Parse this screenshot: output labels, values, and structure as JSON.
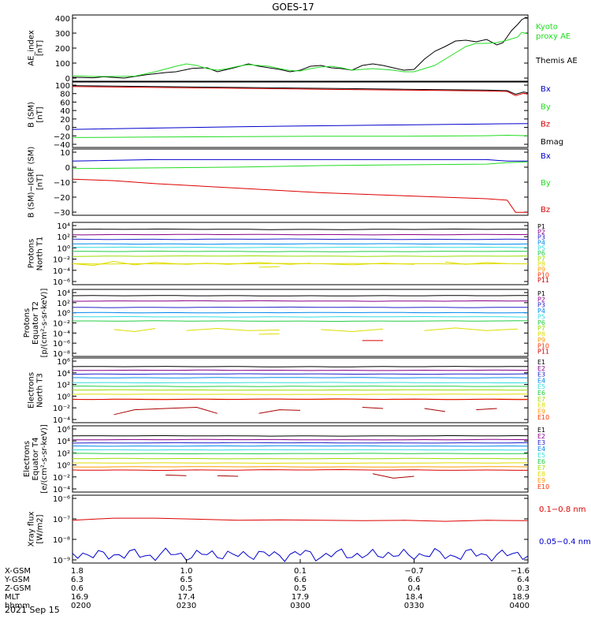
{
  "title": "GOES-17",
  "date": "2021 Sep 15",
  "colors": {
    "black": "#000000",
    "red": "#dd0000",
    "green": "#22dd22",
    "blue": "#0000cc",
    "P1": "#000000",
    "P2": "#880088",
    "P3": "#2222cc",
    "P4": "#0088ee",
    "P5": "#33dddd",
    "P6": "#22cc44",
    "P7": "#99dd00",
    "P8": "#dddd00",
    "P9": "#ff9900",
    "P10": "#ff3300",
    "P11": "#cc0000"
  },
  "panels": [
    {
      "id": "ae",
      "ylabel": [
        "AE_index",
        "[nT]"
      ],
      "ytick_labels": [
        "400",
        "300",
        "200",
        "100",
        "0"
      ],
      "ylim": [
        0,
        420
      ],
      "legend": [
        {
          "text": "Kyoto",
          "color": "#22dd22"
        },
        {
          "text": "proxy AE",
          "color": "#22dd22"
        },
        {
          "text": "Themis AE",
          "color": "#000000"
        }
      ]
    },
    {
      "id": "bsm",
      "ylabel": [
        "B (SM)",
        "[nT]"
      ],
      "ytick_labels": [
        "100",
        "80",
        "60",
        "40",
        "20",
        "0",
        "−20",
        "−40"
      ],
      "ylim": [
        -45,
        100
      ],
      "legend": [
        {
          "text": "Bx",
          "color": "#0000cc"
        },
        {
          "text": "By",
          "color": "#22dd22"
        },
        {
          "text": "Bz",
          "color": "#dd0000"
        },
        {
          "text": "Bmag",
          "color": "#000000"
        }
      ]
    },
    {
      "id": "bigrf",
      "ylabel": [
        "B (SM)−IGRF (SM)",
        "[nT]"
      ],
      "ytick_labels": [
        "10",
        "0",
        "−10",
        "−20",
        "−30"
      ],
      "ylim": [
        -32,
        12
      ],
      "legend": [
        {
          "text": "Bx",
          "color": "#0000cc"
        },
        {
          "text": "By",
          "color": "#22dd22"
        },
        {
          "text": "Bz",
          "color": "#dd0000"
        }
      ]
    },
    {
      "id": "pn",
      "ylabel": [
        "Protons",
        "North T1"
      ],
      "ytick_labels": [
        "10⁴",
        "10²",
        "10⁰",
        "10⁻²",
        "10⁻⁴",
        "10⁻⁶"
      ],
      "ylim": [
        -6.5,
        4.2
      ],
      "legend": [
        "P1",
        "P2",
        "P3",
        "P4",
        "P5",
        "P6",
        "P7",
        "P8",
        "P9",
        "P10",
        "P11"
      ]
    },
    {
      "id": "pe",
      "ylabel": [
        "Protons",
        "Equator T2",
        "[p/(cm²-s-sr-keV)]"
      ],
      "ytick_labels": [
        "10⁴",
        "10²",
        "10⁰",
        "10⁻²",
        "10⁻⁴",
        "10⁻⁶",
        "10⁻⁸"
      ],
      "ylim": [
        -8.5,
        4.2
      ],
      "legend": [
        "P1",
        "P2",
        "P3",
        "P4",
        "P5",
        "P6",
        "P7",
        "P8",
        "P9",
        "P10",
        "P11"
      ]
    },
    {
      "id": "en",
      "ylabel": [
        "Electrons",
        "North T3"
      ],
      "ytick_labels": [
        "10⁶",
        "10⁴",
        "10²",
        "10⁰",
        "10⁻²",
        "10⁻⁴"
      ],
      "ylim": [
        -4.3,
        6.2
      ],
      "legend": [
        "E1",
        "E2",
        "E3",
        "E4",
        "E5",
        "E6",
        "E7",
        "E8",
        "E9",
        "E10"
      ]
    },
    {
      "id": "ee",
      "ylabel": [
        "Electrons",
        "Equator T4",
        "[e/(cm²-s-sr-keV)]"
      ],
      "ytick_labels": [
        "10⁶",
        "10⁴",
        "10²",
        "10⁰",
        "10⁻²",
        "10⁻⁴"
      ],
      "ylim": [
        -4.3,
        6.2
      ],
      "legend": [
        "E1",
        "E2",
        "E3",
        "E4",
        "E5",
        "E6",
        "E7",
        "E8",
        "E9",
        "E10"
      ]
    },
    {
      "id": "xray",
      "ylabel": [
        "Xray flux",
        "[W/m2]"
      ],
      "ytick_labels": [
        "10⁻⁶",
        "10⁻⁷",
        "10⁻⁸",
        "10⁻⁹"
      ],
      "ylim": [
        -9.15,
        -5.9
      ],
      "legend": [
        {
          "text": "0.1−0.8 nm",
          "color": "#dd0000"
        },
        {
          "text": "0.05−0.4 nm",
          "color": "#0000cc"
        }
      ]
    }
  ],
  "x_axis": {
    "rows": [
      {
        "label": "X-GSM",
        "values": [
          "1.8",
          "1.0",
          "0.1",
          "−0.7",
          "−1.6"
        ]
      },
      {
        "label": "Y-GSM",
        "values": [
          "6.3",
          "6.5",
          "6.6",
          "6.6",
          "6.4"
        ]
      },
      {
        "label": "Z-GSM",
        "values": [
          "0.6",
          "0.5",
          "0.5",
          "0.4",
          "0.3"
        ]
      },
      {
        "label": "MLT",
        "values": [
          "16.9",
          "17.4",
          "17.9",
          "18.4",
          "18.9"
        ]
      },
      {
        "label": "hhmm",
        "values": [
          "0200",
          "0230",
          "0300",
          "0330",
          "0400"
        ]
      }
    ]
  },
  "chart_data": {
    "type": "line",
    "x_range": [
      "02:00",
      "04:00"
    ],
    "ae": {
      "themis": [
        [
          0,
          25
        ],
        [
          10,
          22
        ],
        [
          15,
          28
        ],
        [
          25,
          20
        ],
        [
          35,
          40
        ],
        [
          45,
          55
        ],
        [
          50,
          60
        ],
        [
          58,
          82
        ],
        [
          65,
          85
        ],
        [
          70,
          60
        ],
        [
          78,
          85
        ],
        [
          85,
          110
        ],
        [
          90,
          95
        ],
        [
          95,
          85
        ],
        [
          100,
          75
        ],
        [
          105,
          60
        ],
        [
          110,
          70
        ],
        [
          115,
          95
        ],
        [
          120,
          100
        ],
        [
          125,
          85
        ],
        [
          130,
          80
        ],
        [
          135,
          70
        ],
        [
          140,
          100
        ],
        [
          145,
          110
        ],
        [
          150,
          100
        ],
        [
          155,
          85
        ],
        [
          160,
          70
        ],
        [
          165,
          75
        ],
        [
          170,
          140
        ],
        [
          175,
          190
        ],
        [
          180,
          220
        ],
        [
          185,
          255
        ],
        [
          190,
          260
        ],
        [
          195,
          250
        ],
        [
          200,
          265
        ],
        [
          205,
          230
        ],
        [
          208,
          245
        ],
        [
          212,
          320
        ],
        [
          215,
          360
        ],
        [
          217,
          390
        ],
        [
          219,
          405
        ],
        [
          220,
          400
        ]
      ],
      "kyoto": [
        [
          0,
          35
        ],
        [
          10,
          30
        ],
        [
          20,
          30
        ],
        [
          30,
          32
        ],
        [
          40,
          60
        ],
        [
          50,
          95
        ],
        [
          55,
          110
        ],
        [
          60,
          100
        ],
        [
          65,
          80
        ],
        [
          70,
          70
        ],
        [
          75,
          80
        ],
        [
          80,
          95
        ],
        [
          85,
          105
        ],
        [
          90,
          100
        ],
        [
          95,
          95
        ],
        [
          100,
          80
        ],
        [
          105,
          68
        ],
        [
          110,
          65
        ],
        [
          115,
          80
        ],
        [
          120,
          90
        ],
        [
          125,
          95
        ],
        [
          130,
          85
        ],
        [
          135,
          70
        ],
        [
          140,
          75
        ],
        [
          145,
          80
        ],
        [
          150,
          75
        ],
        [
          155,
          70
        ],
        [
          160,
          60
        ],
        [
          165,
          60
        ],
        [
          170,
          80
        ],
        [
          175,
          100
        ],
        [
          180,
          140
        ],
        [
          185,
          180
        ],
        [
          190,
          220
        ],
        [
          195,
          240
        ],
        [
          200,
          240
        ],
        [
          205,
          245
        ],
        [
          210,
          260
        ],
        [
          215,
          280
        ],
        [
          217,
          310
        ],
        [
          220,
          300
        ]
      ]
    },
    "bsm": {
      "bmag": [
        [
          0,
          92
        ],
        [
          40,
          90
        ],
        [
          80,
          88
        ],
        [
          120,
          86
        ],
        [
          160,
          84
        ],
        [
          200,
          82
        ],
        [
          210,
          81
        ],
        [
          214,
          73
        ],
        [
          218,
          78
        ],
        [
          220,
          76
        ]
      ],
      "bz": [
        [
          0,
          90
        ],
        [
          40,
          88
        ],
        [
          80,
          86
        ],
        [
          120,
          84
        ],
        [
          160,
          82
        ],
        [
          200,
          80
        ],
        [
          210,
          79
        ],
        [
          214,
          70
        ],
        [
          218,
          75
        ],
        [
          220,
          73
        ]
      ],
      "bx": [
        [
          0,
          -5
        ],
        [
          40,
          -2
        ],
        [
          80,
          1
        ],
        [
          120,
          3
        ],
        [
          160,
          5
        ],
        [
          200,
          7
        ],
        [
          220,
          8
        ]
      ],
      "by": [
        [
          0,
          -23
        ],
        [
          40,
          -22
        ],
        [
          80,
          -21
        ],
        [
          120,
          -20
        ],
        [
          160,
          -20
        ],
        [
          200,
          -19
        ],
        [
          210,
          -18
        ],
        [
          220,
          -19
        ]
      ]
    },
    "bigrf": {
      "bx": [
        [
          0,
          4
        ],
        [
          40,
          5
        ],
        [
          80,
          5
        ],
        [
          120,
          5
        ],
        [
          160,
          5
        ],
        [
          200,
          5
        ],
        [
          210,
          4
        ],
        [
          220,
          4
        ]
      ],
      "by": [
        [
          0,
          -1
        ],
        [
          40,
          -0.5
        ],
        [
          80,
          0
        ],
        [
          120,
          1
        ],
        [
          160,
          1.5
        ],
        [
          200,
          2
        ],
        [
          210,
          3
        ],
        [
          220,
          3.5
        ]
      ],
      "bz": [
        [
          0,
          -8
        ],
        [
          20,
          -9
        ],
        [
          40,
          -11
        ],
        [
          80,
          -14
        ],
        [
          120,
          -17
        ],
        [
          160,
          -19
        ],
        [
          200,
          -21
        ],
        [
          210,
          -22
        ],
        [
          214,
          -30
        ],
        [
          220,
          -30
        ]
      ]
    },
    "pn": {
      "levels": [
        3.0,
        2.1,
        1.3,
        0.5,
        -0.1,
        -0.8,
        -1.6,
        -2.9
      ],
      "segments": [
        [
          [
            0,
            -2.9
          ],
          [
            10,
            -3.2
          ],
          [
            20,
            -2.5
          ],
          [
            30,
            -3.1
          ],
          [
            40,
            -2.7
          ],
          [
            55,
            -3.0
          ],
          [
            65,
            -2.8
          ],
          [
            75,
            -3.0
          ],
          [
            90,
            -2.7
          ],
          [
            105,
            -3.0
          ],
          [
            115,
            -2.8
          ]
        ],
        [
          [
            90,
            -3.5
          ],
          [
            100,
            -3.4
          ]
        ],
        [
          [
            120,
            -2.9
          ],
          [
            135,
            -3.1
          ],
          [
            150,
            -2.8
          ],
          [
            165,
            -3.0
          ]
        ],
        [
          [
            180,
            -2.6
          ],
          [
            190,
            -3.0
          ],
          [
            200,
            -2.7
          ],
          [
            210,
            -2.9
          ]
        ]
      ]
    },
    "pe": {
      "levels": [
        3.0,
        2.0,
        0.8,
        -0.2,
        -1.0,
        -1.8
      ],
      "segments": [
        [
          [
            20,
            -3.4
          ],
          [
            30,
            -3.8
          ],
          [
            40,
            -3.2
          ]
        ],
        [
          [
            55,
            -3.6
          ],
          [
            70,
            -3.2
          ],
          [
            85,
            -3.6
          ],
          [
            100,
            -3.5
          ]
        ],
        [
          [
            90,
            -4.3
          ],
          [
            100,
            -4.2
          ]
        ],
        [
          [
            120,
            -3.4
          ],
          [
            135,
            -3.8
          ],
          [
            150,
            -3.3
          ]
        ],
        [
          [
            170,
            -3.6
          ],
          [
            185,
            -3.1
          ],
          [
            200,
            -3.6
          ],
          [
            215,
            -3.3
          ]
        ]
      ],
      "red_segment": [
        [
          140,
          -5.5
        ],
        [
          150,
          -5.5
        ]
      ]
    },
    "en": {
      "levels": [
        4.8,
        4.2,
        3.6,
        3.0,
        2.2,
        1.6,
        1.0,
        0.3,
        -0.5
      ],
      "red_level": -0.5,
      "red_segments": [
        [
          [
            20,
            -3.0
          ],
          [
            30,
            -2.2
          ],
          [
            45,
            -2.0
          ],
          [
            60,
            -1.8
          ],
          [
            70,
            -2.8
          ]
        ],
        [
          [
            90,
            -2.8
          ],
          [
            100,
            -2.2
          ],
          [
            110,
            -2.3
          ]
        ],
        [
          [
            140,
            -1.8
          ],
          [
            150,
            -2.0
          ]
        ],
        [
          [
            170,
            -2.0
          ],
          [
            180,
            -2.5
          ]
        ],
        [
          [
            195,
            -2.2
          ],
          [
            205,
            -2.0
          ]
        ]
      ]
    },
    "ee": {
      "levels": [
        4.6,
        4.0,
        3.5,
        3.0,
        2.4,
        1.8,
        1.0,
        0.3,
        -0.3
      ],
      "red_level": -0.8,
      "red_segments": [
        [
          [
            45,
            -1.6
          ],
          [
            55,
            -1.7
          ]
        ],
        [
          [
            70,
            -1.7
          ],
          [
            80,
            -1.8
          ]
        ],
        [
          [
            145,
            -1.4
          ],
          [
            155,
            -2.1
          ],
          [
            165,
            -1.8
          ]
        ]
      ]
    },
    "xray": {
      "long": [
        [
          0,
          -7.1
        ],
        [
          10,
          -7.05
        ],
        [
          20,
          -7.0
        ],
        [
          40,
          -7.0
        ],
        [
          60,
          -7.05
        ],
        [
          80,
          -7.1
        ],
        [
          100,
          -7.08
        ],
        [
          120,
          -7.1
        ],
        [
          140,
          -7.12
        ],
        [
          160,
          -7.1
        ],
        [
          180,
          -7.15
        ],
        [
          200,
          -7.1
        ],
        [
          220,
          -7.12
        ]
      ],
      "short_base": -8.75
    }
  }
}
